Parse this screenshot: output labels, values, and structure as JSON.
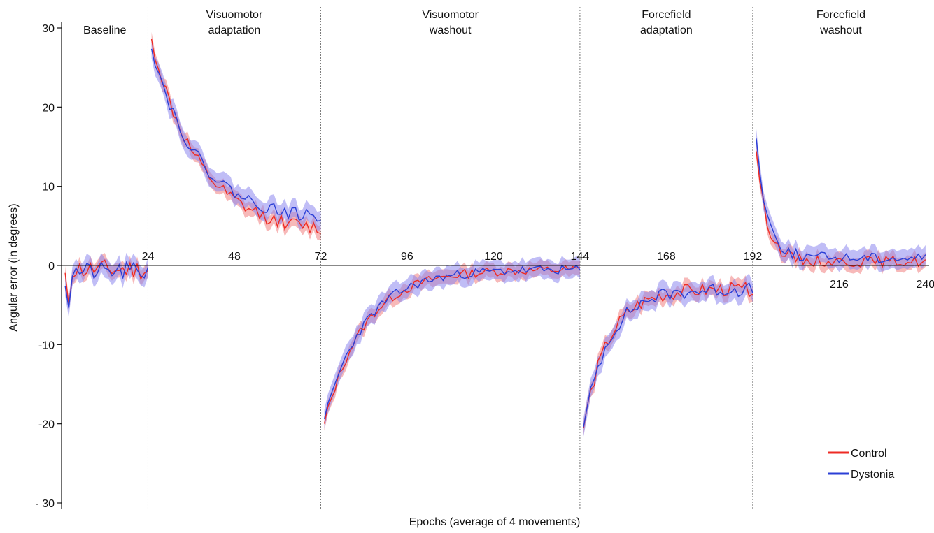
{
  "chart_data": {
    "type": "line",
    "title": "",
    "xlabel": "Epochs (average of 4 movements)",
    "ylabel": "Angular error (in degrees)",
    "xlim": [
      0,
      241
    ],
    "ylim": [
      -30,
      30
    ],
    "yticks": [
      30,
      20,
      10,
      0,
      -10,
      -20,
      -30
    ],
    "ytick_labels": [
      "30",
      "20",
      "10",
      "0",
      "-10",
      "-20",
      "- 30"
    ],
    "xticks_on_zero_line": [
      {
        "value": 24,
        "label": "24",
        "side": "above"
      },
      {
        "value": 48,
        "label": "48",
        "side": "above"
      },
      {
        "value": 72,
        "label": "72",
        "side": "above"
      },
      {
        "value": 96,
        "label": "96",
        "side": "above"
      },
      {
        "value": 120,
        "label": "120",
        "side": "above"
      },
      {
        "value": 144,
        "label": "144",
        "side": "above"
      },
      {
        "value": 168,
        "label": "168",
        "side": "above"
      },
      {
        "value": 192,
        "label": "192",
        "side": "above"
      },
      {
        "value": 216,
        "label": "216",
        "side": "below"
      },
      {
        "value": 240,
        "label": "240",
        "side": "below"
      }
    ],
    "phase_boundaries": [
      24,
      72,
      144,
      192
    ],
    "phases": [
      {
        "name": "Baseline",
        "lines": [
          "Baseline"
        ],
        "start": 0,
        "end": 24
      },
      {
        "name": "Visuomotor adaptation",
        "lines": [
          "Visuomotor",
          "adaptation"
        ],
        "start": 24,
        "end": 72
      },
      {
        "name": "Visuomotor washout",
        "lines": [
          "Visuomotor",
          "washout"
        ],
        "start": 72,
        "end": 144
      },
      {
        "name": "Forcefield adaptation",
        "lines": [
          "Forcefield",
          "adaptation"
        ],
        "start": 144,
        "end": 192
      },
      {
        "name": "Forcefield washout",
        "lines": [
          "Forcefield",
          "washout"
        ],
        "start": 192,
        "end": 241
      }
    ],
    "legend_position": "bottom-right",
    "grid": false,
    "series": [
      {
        "name": "Control",
        "color": "#ee2b24",
        "band_color": "#f08080",
        "band_width": 0.9,
        "phases": [
          {
            "start": 1,
            "end": 24,
            "y0": -2.0,
            "amp": 2.5,
            "tau": 1.5,
            "floor": -0.5,
            "noise": 1.3,
            "seed": 11
          },
          {
            "start": 25,
            "end": 72,
            "y0": 28.5,
            "amp": 24.5,
            "tau": 13,
            "floor": 4.0,
            "noise": 0.9,
            "seed": 12
          },
          {
            "start": 73,
            "end": 144,
            "y0": -20.0,
            "amp": -19.5,
            "tau": 11,
            "floor": -0.5,
            "noise": 0.6,
            "seed": 13
          },
          {
            "start": 145,
            "end": 192,
            "y0": -20.5,
            "amp": -17.5,
            "tau": 7,
            "floor": -3.0,
            "noise": 0.9,
            "seed": 14
          },
          {
            "start": 193,
            "end": 240,
            "y0": 14.5,
            "amp": 14.0,
            "tau": 3,
            "floor": 0.5,
            "noise": 0.7,
            "seed": 15
          }
        ]
      },
      {
        "name": "Dystonia",
        "color": "#2b3fd6",
        "band_color": "#8c86ee",
        "band_width": 1.2,
        "phases": [
          {
            "start": 1,
            "end": 24,
            "y0": -2.0,
            "amp": 2.5,
            "tau": 1.5,
            "floor": -0.8,
            "noise": 1.2,
            "seed": 21
          },
          {
            "start": 25,
            "end": 72,
            "y0": 27.5,
            "amp": 22.0,
            "tau": 13,
            "floor": 5.5,
            "noise": 0.8,
            "seed": 22
          },
          {
            "start": 73,
            "end": 144,
            "y0": -19.5,
            "amp": -19.0,
            "tau": 11,
            "floor": -0.5,
            "noise": 0.6,
            "seed": 23
          },
          {
            "start": 145,
            "end": 192,
            "y0": -20.5,
            "amp": -17.0,
            "tau": 7,
            "floor": -3.0,
            "noise": 0.9,
            "seed": 24
          },
          {
            "start": 193,
            "end": 240,
            "y0": 16.0,
            "amp": 14.5,
            "tau": 3,
            "floor": 1.0,
            "noise": 0.7,
            "seed": 25
          }
        ]
      }
    ]
  }
}
